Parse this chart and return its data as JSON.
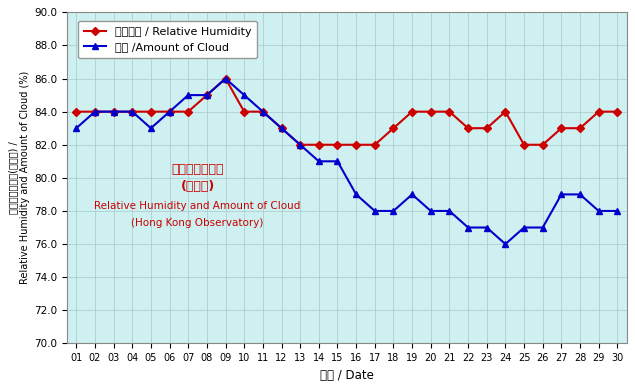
{
  "days": [
    1,
    2,
    3,
    4,
    5,
    6,
    7,
    8,
    9,
    10,
    11,
    12,
    13,
    14,
    15,
    16,
    17,
    18,
    19,
    20,
    21,
    22,
    23,
    24,
    25,
    26,
    27,
    28,
    29,
    30
  ],
  "day_labels": [
    "01",
    "02",
    "03",
    "04",
    "05",
    "06",
    "07",
    "08",
    "09",
    "10",
    "11",
    "12",
    "13",
    "14",
    "15",
    "16",
    "17",
    "18",
    "19",
    "20",
    "21",
    "22",
    "23",
    "24",
    "25",
    "26",
    "27",
    "28",
    "29",
    "30"
  ],
  "rh": [
    84,
    84,
    84,
    84,
    84,
    84,
    84,
    85,
    86,
    84,
    84,
    83,
    82,
    82,
    82,
    82,
    82,
    83,
    84,
    84,
    84,
    83,
    83,
    84,
    82,
    82,
    83,
    83,
    84,
    84
  ],
  "cloud": [
    83,
    84,
    84,
    84,
    83,
    84,
    85,
    85,
    86,
    85,
    84,
    83,
    82,
    81,
    81,
    79,
    78,
    78,
    79,
    78,
    78,
    77,
    77,
    76,
    77,
    77,
    79,
    79,
    78,
    78
  ],
  "rh_color": "#cc0000",
  "cloud_color": "#0000cc",
  "rh_label": "相對濕度 / Relative Humidity",
  "cloud_label": "雲量 /Amount of Cloud",
  "bg_color": "#cef0f0",
  "grid_color": "#aacccc",
  "ylabel_top": "相對濕度及雲量(百分比) /",
  "ylabel_bot": "Relative Humidity and Amount of Cloud (%)",
  "xlabel": "日期 / Date",
  "ylim_min": 70.0,
  "ylim_max": 90.0,
  "yticks": [
    70.0,
    72.0,
    74.0,
    76.0,
    78.0,
    80.0,
    82.0,
    84.0,
    86.0,
    88.0,
    90.0
  ],
  "ann_cn1": "相對濕度及雲量",
  "ann_cn2": "(天文台)",
  "ann_en1": "Relative Humidity and Amount of Cloud",
  "ann_en2": "(Hong Kong Observatory)"
}
